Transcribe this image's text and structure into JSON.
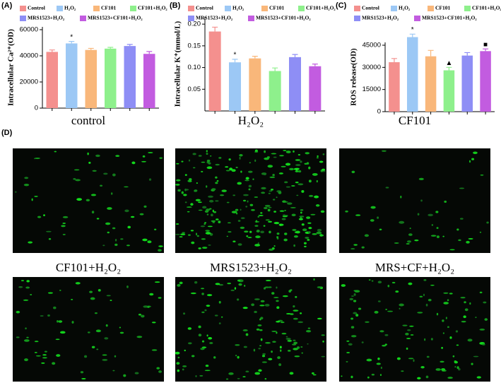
{
  "chart_data": [
    {
      "type": "bar",
      "panel": "(A)",
      "ylabel": "Intracellular Ca²⁺(OD)",
      "categories": [
        "Control",
        "H₂O₂",
        "CF101",
        "CF101+H₂O₂",
        "MRS1523+H₂O₂",
        "MRS1523+CF101+H₂O₂"
      ],
      "colors": [
        "#f4908e",
        "#9cc8f5",
        "#f9b77a",
        "#8ef08c",
        "#8e8ef5",
        "#c25ce0"
      ],
      "values": [
        43000,
        49500,
        44500,
        45500,
        47500,
        41500
      ],
      "errors": [
        1500,
        1500,
        1200,
        1000,
        1200,
        1800
      ],
      "markers": [
        null,
        "*",
        null,
        null,
        null,
        null
      ],
      "ylim": [
        0,
        60000
      ],
      "yticks": [
        0,
        20000,
        40000,
        60000
      ]
    },
    {
      "type": "bar",
      "panel": "(B)",
      "ylabel": "Intracellular K⁺(mmol/L)",
      "categories": [
        "Control",
        "H₂O₂",
        "CF101",
        "CF101+H₂O₂",
        "MRS1523+H₂O₂",
        "MRS1523+CF101+H₂O₂"
      ],
      "colors": [
        "#f4908e",
        "#9cc8f5",
        "#f9b77a",
        "#8ef08c",
        "#8e8ef5",
        "#c25ce0"
      ],
      "values": [
        0.183,
        0.112,
        0.121,
        0.092,
        0.124,
        0.103
      ],
      "errors": [
        0.01,
        0.007,
        0.005,
        0.007,
        0.006,
        0.005
      ],
      "markers": [
        null,
        "*",
        null,
        null,
        null,
        null
      ],
      "ylim": [
        0,
        0.21
      ],
      "yticks": [
        0.05,
        {
          "value": 0.1,
          "label": "0.10"
        },
        0.15,
        {
          "value": 0.2,
          "label": "0.20"
        }
      ]
    },
    {
      "type": "bar",
      "panel": "(C)",
      "ylabel": "ROS release(OD)",
      "categories": [
        "Control",
        "H₂O₂",
        "CF101",
        "CF101+H₂O₂",
        "MRS1523+H₂O₂",
        "MRS1523+CF101+H₂O₂"
      ],
      "colors": [
        "#f4908e",
        "#9cc8f5",
        "#f9b77a",
        "#8ef08c",
        "#8e8ef5",
        "#c25ce0"
      ],
      "values": [
        33500,
        50500,
        37500,
        28000,
        38000,
        41000
      ],
      "errors": [
        2500,
        2000,
        4000,
        2000,
        2000,
        1500
      ],
      "markers": [
        null,
        "*",
        null,
        "▲",
        null,
        "■"
      ],
      "ylim": [
        0,
        45000
      ],
      "yticks": [
        0,
        15000,
        30000,
        45000
      ]
    }
  ],
  "images": {
    "panel": "(D)",
    "captions": [
      "control",
      "H₂O₂",
      "CF101",
      "CF101+H₂O₂",
      "MRS1523+H₂O₂",
      "MRS+CF+H₂O₂"
    ]
  }
}
